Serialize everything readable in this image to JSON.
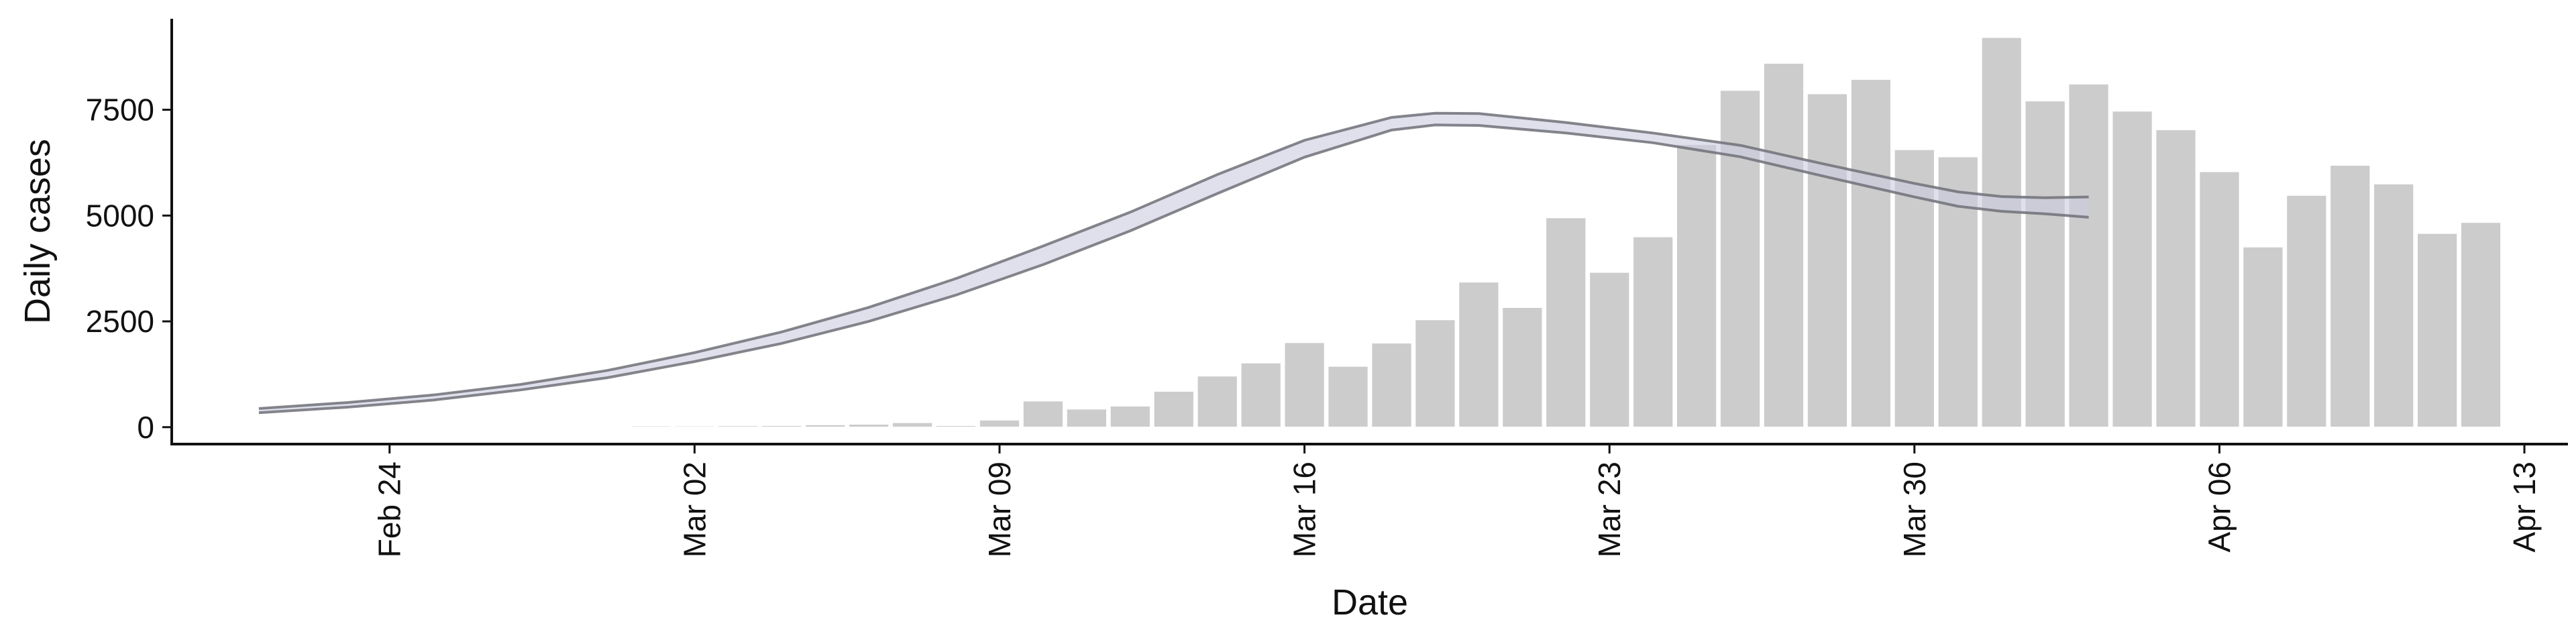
{
  "chart_data": {
    "type": "bar",
    "title": "",
    "xlabel": "Date",
    "ylabel": "Daily cases",
    "ylim": [
      -400,
      9650
    ],
    "xlim": [
      "2020-02-19",
      "2020-04-14"
    ],
    "grid": false,
    "legend": "none",
    "colors": {
      "bar": "#cccccc",
      "bar_edge": "#ffffff",
      "band": "#c9ccdd",
      "band_edge": "#707078",
      "axis": "#111111"
    },
    "y_ticks": [
      0,
      2500,
      5000,
      7500
    ],
    "x_ticks": [
      {
        "date": "2020-02-24",
        "label": "Feb 24"
      },
      {
        "date": "2020-03-02",
        "label": "Mar 02"
      },
      {
        "date": "2020-03-09",
        "label": "Mar 09"
      },
      {
        "date": "2020-03-16",
        "label": "Mar 16"
      },
      {
        "date": "2020-03-23",
        "label": "Mar 23"
      },
      {
        "date": "2020-03-30",
        "label": "Mar 30"
      },
      {
        "date": "2020-04-06",
        "label": "Apr 06"
      },
      {
        "date": "2020-04-13",
        "label": "Apr 13"
      }
    ],
    "series": [
      {
        "type": "bar",
        "x": [
          "2020-02-26",
          "2020-02-27",
          "2020-02-28",
          "2020-02-29",
          "2020-03-01",
          "2020-03-02",
          "2020-03-03",
          "2020-03-04",
          "2020-03-05",
          "2020-03-06",
          "2020-03-07",
          "2020-03-08",
          "2020-03-09",
          "2020-03-10",
          "2020-03-11",
          "2020-03-12",
          "2020-03-13",
          "2020-03-14",
          "2020-03-15",
          "2020-03-16",
          "2020-03-17",
          "2020-03-18",
          "2020-03-19",
          "2020-03-20",
          "2020-03-21",
          "2020-03-22",
          "2020-03-23",
          "2020-03-24",
          "2020-03-25",
          "2020-03-26",
          "2020-03-27",
          "2020-03-28",
          "2020-03-29",
          "2020-03-30",
          "2020-03-31",
          "2020-04-01",
          "2020-04-02",
          "2020-04-03",
          "2020-04-04",
          "2020-04-05",
          "2020-04-06",
          "2020-04-07",
          "2020-04-08",
          "2020-04-09",
          "2020-04-10",
          "2020-04-11",
          "2020-04-12"
        ],
        "values": [
          4,
          12,
          6,
          22,
          31,
          30,
          37,
          41,
          59,
          72,
          109,
          40,
          170,
          620,
          430,
          500,
          850,
          1210,
          1520,
          2000,
          1440,
          1990,
          2540,
          3430,
          2830,
          4950,
          3660,
          4500,
          6680,
          7960,
          8600,
          7880,
          8220,
          6560,
          6390,
          9210,
          7710,
          8110,
          7470,
          7030,
          6040,
          4260,
          5480,
          6190,
          5750,
          4580,
          4840
        ]
      },
      {
        "type": "band",
        "x": [
          "2020-02-21",
          "2020-02-23",
          "2020-02-25",
          "2020-02-27",
          "2020-02-29",
          "2020-03-02",
          "2020-03-04",
          "2020-03-06",
          "2020-03-08",
          "2020-03-10",
          "2020-03-12",
          "2020-03-14",
          "2020-03-16",
          "2020-03-18",
          "2020-03-19",
          "2020-03-20",
          "2020-03-22",
          "2020-03-24",
          "2020-03-26",
          "2020-03-28",
          "2020-03-30",
          "2020-03-31",
          "2020-04-01",
          "2020-04-02",
          "2020-04-03"
        ],
        "lower": [
          340,
          470,
          640,
          880,
          1170,
          1550,
          1980,
          2500,
          3120,
          3840,
          4640,
          5520,
          6380,
          7020,
          7140,
          7130,
          6950,
          6720,
          6390,
          5910,
          5440,
          5220,
          5100,
          5040,
          4960
        ],
        "upper": [
          440,
          580,
          760,
          1010,
          1340,
          1760,
          2250,
          2830,
          3510,
          4280,
          5080,
          5970,
          6780,
          7320,
          7420,
          7410,
          7200,
          6950,
          6660,
          6200,
          5760,
          5560,
          5450,
          5420,
          5440
        ]
      }
    ]
  }
}
